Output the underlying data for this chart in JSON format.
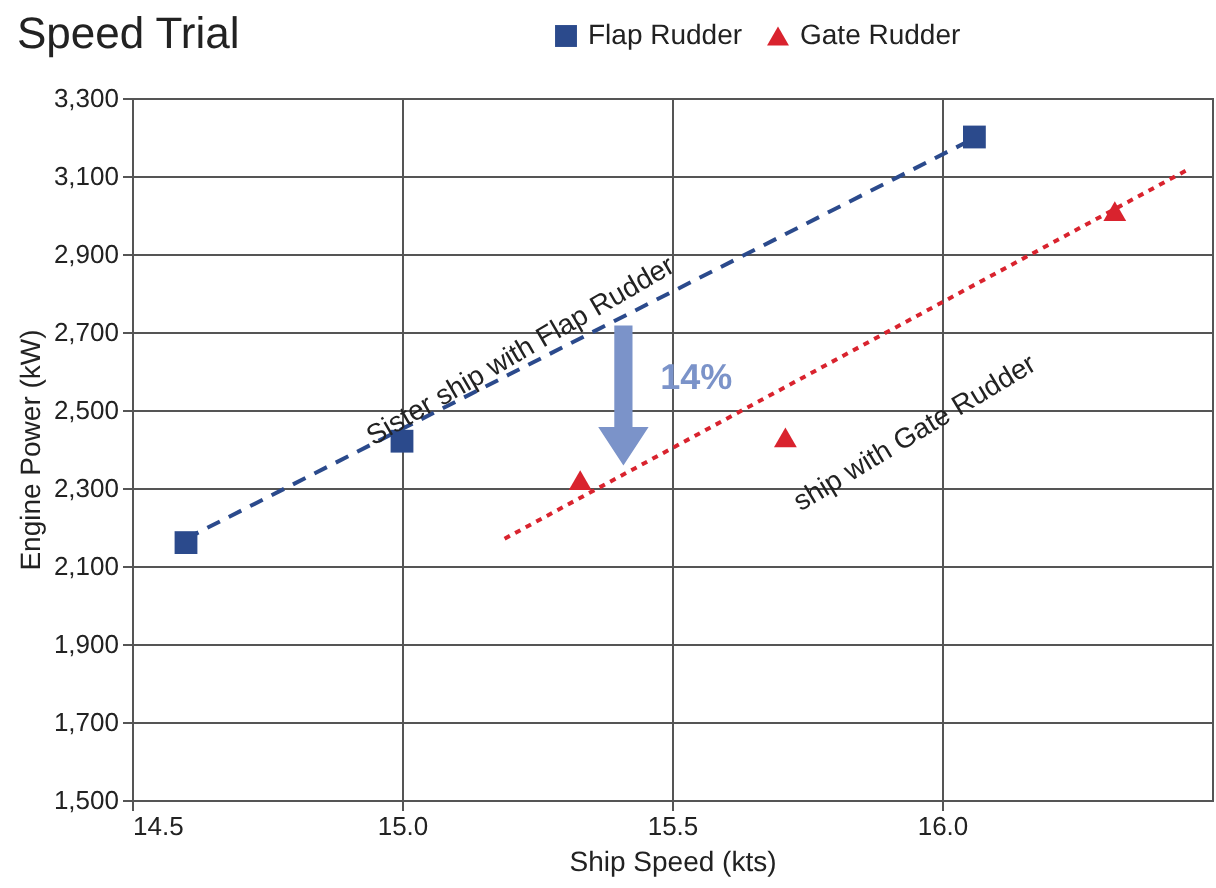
{
  "chart_data": {
    "type": "scatter",
    "title": "Speed Trial",
    "xlabel": "Ship Speed (kts)",
    "ylabel": "Engine Power (kW)",
    "xlim": [
      14.5,
      16.5
    ],
    "xticks": [
      14.5,
      {
        "value": 15,
        "label": "15.0"
      },
      15.5,
      {
        "value": 16,
        "label": "16.0"
      }
    ],
    "ylim": [
      1500,
      3300
    ],
    "yticks": [
      {
        "value": 1500,
        "label": "1,500"
      },
      {
        "value": 1700,
        "label": "1,700"
      },
      {
        "value": 1900,
        "label": "1,900"
      },
      {
        "value": 2100,
        "label": "2,100"
      },
      {
        "value": 2300,
        "label": "2,300"
      },
      {
        "value": 2500,
        "label": "2,500"
      },
      {
        "value": 2700,
        "label": "2,700"
      },
      {
        "value": 2900,
        "label": "2,900"
      },
      {
        "value": 3100,
        "label": "3,100"
      },
      {
        "value": 3300,
        "label": "3,300"
      }
    ],
    "grid": true,
    "legend": "top right",
    "series": [
      {
        "name": "Flap Rudder",
        "color": "#2b4a8c",
        "marker": "square",
        "x": [
          14.6,
          15.0,
          16.06
        ],
        "values": [
          2160,
          2420,
          3200
        ]
      },
      {
        "name": "Gate Rudder",
        "color": "#d9232e",
        "marker": "triangle",
        "x": [
          15.33,
          15.71,
          16.32
        ],
        "values": [
          2320,
          2430,
          3010
        ]
      },
      {
        "type": "line",
        "color": "#2b4a8c",
        "line_style": "dashed",
        "marker": "none",
        "x": [
          14.6,
          16.05
        ],
        "values": [
          2170,
          3190
        ]
      },
      {
        "type": "line",
        "color": "#d9232e",
        "line_style": "dotted",
        "marker": "none",
        "x": [
          15.19,
          16.46
        ],
        "values": [
          2170,
          3120
        ]
      }
    ],
    "annotations": [
      "Sister ship with Flap Rudder",
      "ship with Gate Rudder",
      "14%"
    ]
  }
}
